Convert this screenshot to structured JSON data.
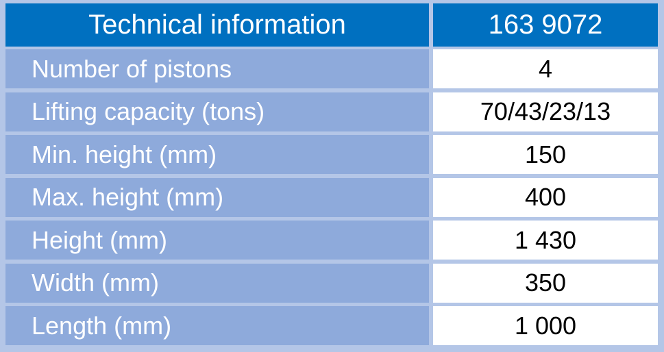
{
  "header": {
    "title": "Technical information",
    "value": "163 9072"
  },
  "table": {
    "rows": [
      [
        "Number of pistons",
        "4"
      ],
      [
        "Lifting capacity (tons)",
        "70/43/23/13"
      ],
      [
        "Min. height (mm)",
        "150"
      ],
      [
        "Max. height (mm)",
        "400"
      ],
      [
        "Height (mm)",
        "1 430"
      ],
      [
        "Width (mm)",
        "350"
      ],
      [
        "Length (mm)",
        "1 000"
      ]
    ]
  }
}
